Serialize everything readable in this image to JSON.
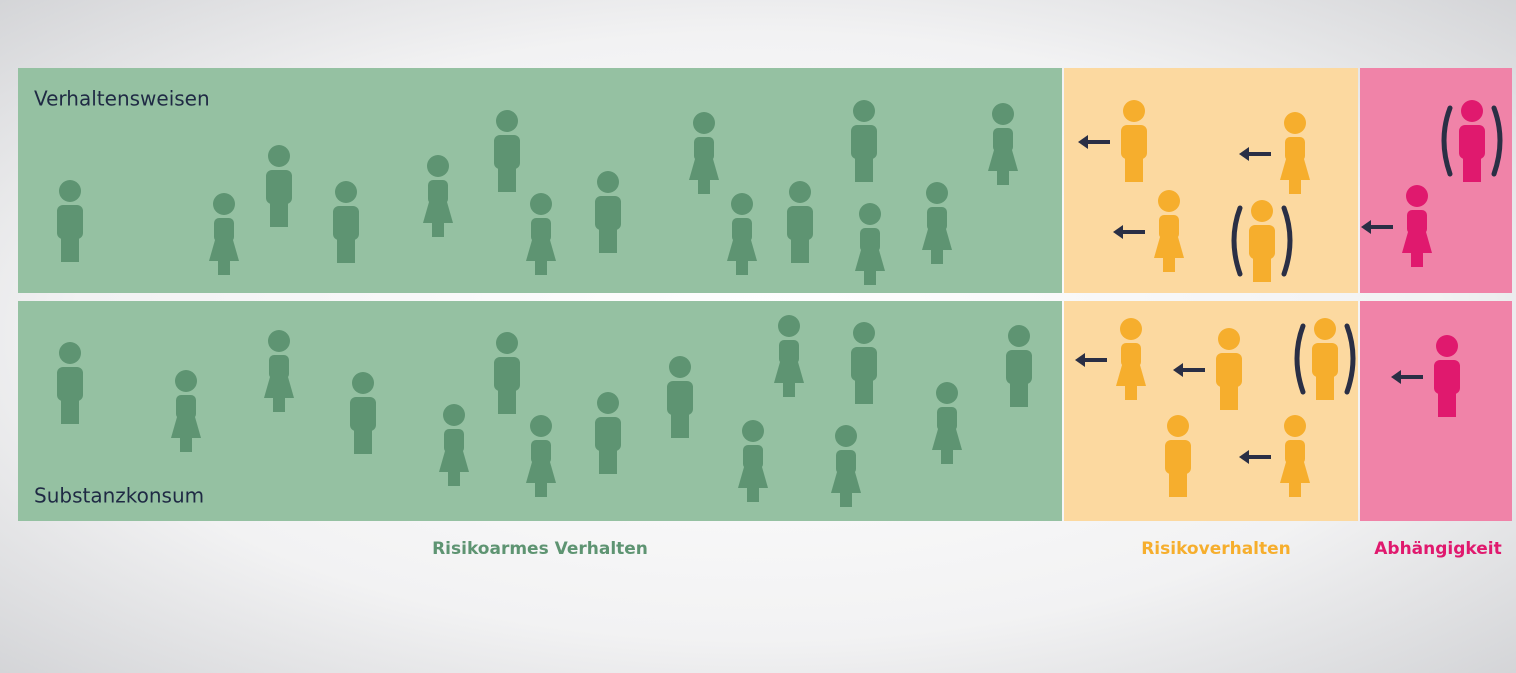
{
  "rows": [
    "Verhaltensweisen",
    "Substanzkonsum"
  ],
  "columns": [
    "Risikoarmes Verhalten",
    "Risikoverhalten",
    "Abhängigkeit"
  ]
}
